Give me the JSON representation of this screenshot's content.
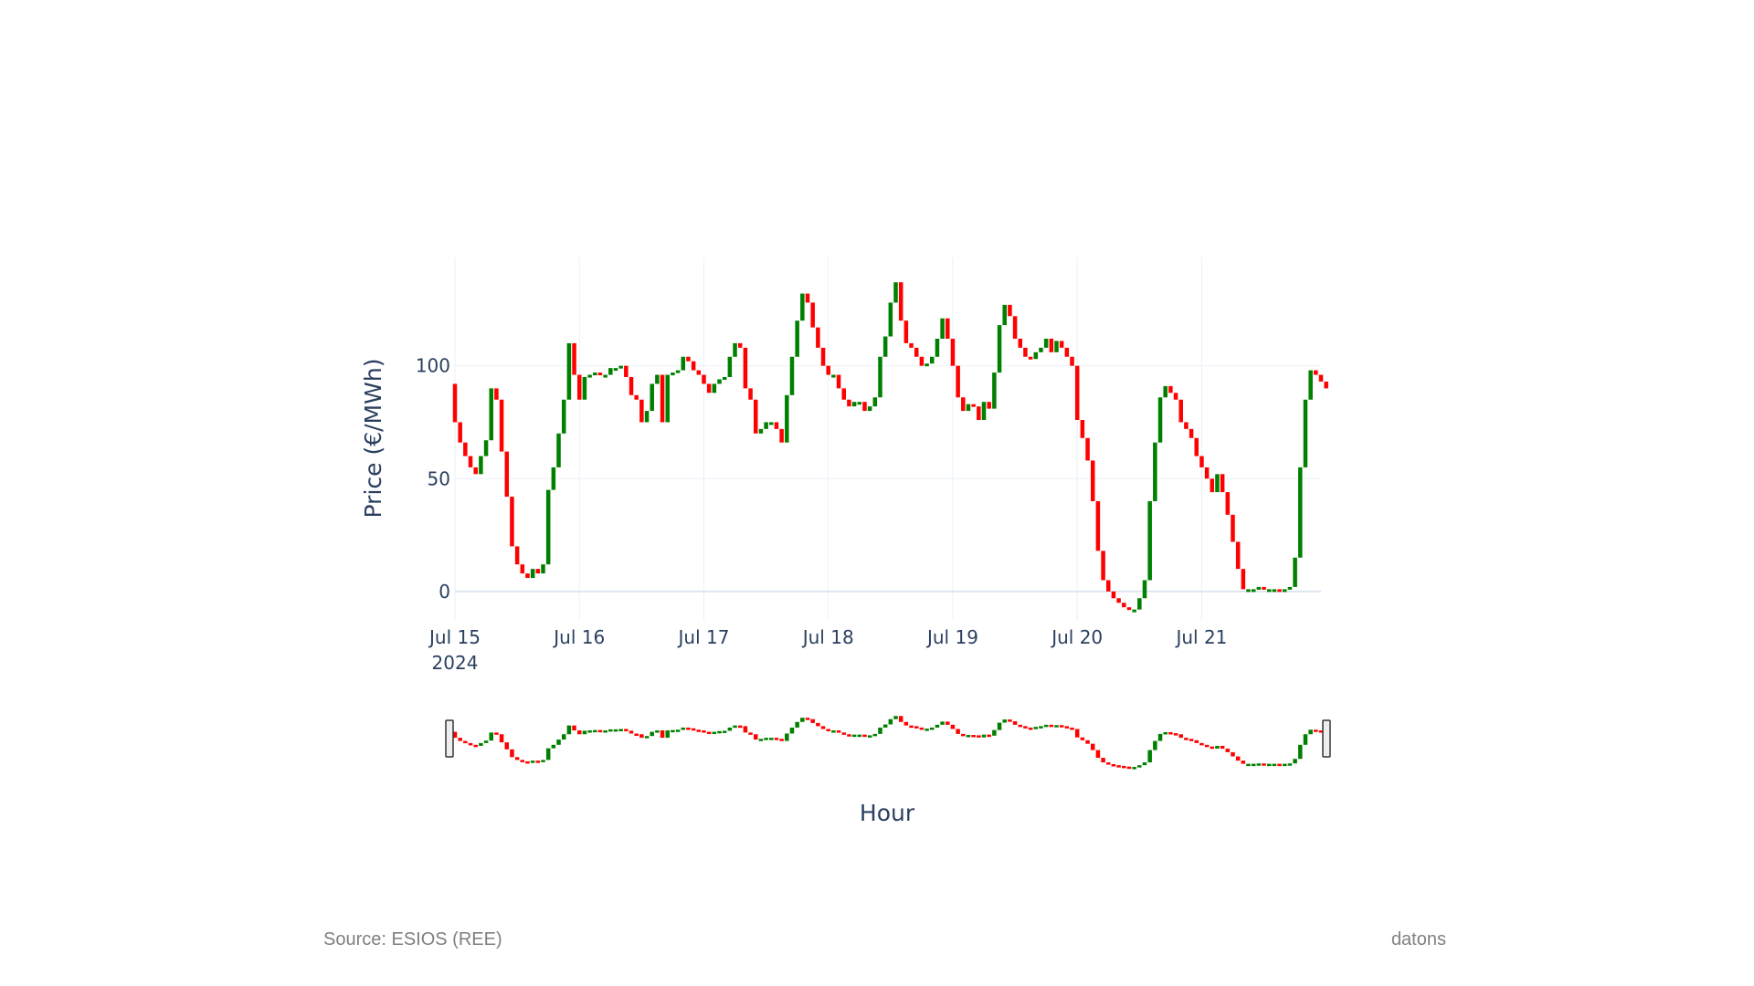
{
  "chart_data": {
    "type": "candlestick",
    "ylabel": "Price (€/MWh)",
    "xlabel": "Hour",
    "y_ticks": [
      0,
      50,
      100
    ],
    "ylim": [
      -13,
      148
    ],
    "x_ticks": [
      {
        "date": "2024-07-15",
        "label": "Jul 15",
        "sub": "2024"
      },
      {
        "date": "2024-07-16",
        "label": "Jul 16",
        "sub": ""
      },
      {
        "date": "2024-07-17",
        "label": "Jul 17",
        "sub": ""
      },
      {
        "date": "2024-07-18",
        "label": "Jul 18",
        "sub": ""
      },
      {
        "date": "2024-07-19",
        "label": "Jul 19",
        "sub": ""
      },
      {
        "date": "2024-07-20",
        "label": "Jul 20",
        "sub": ""
      },
      {
        "date": "2024-07-21",
        "label": "Jul 21",
        "sub": ""
      }
    ],
    "xlim": [
      "2024-07-15 00:00",
      "2024-07-21 23:00"
    ],
    "increasing_color": "#008000",
    "decreasing_color": "#ff0000",
    "grid": true,
    "rangeslider": true,
    "hourly_open": [
      92,
      75,
      66,
      60,
      55,
      52,
      60,
      67,
      90,
      85,
      62,
      42,
      20,
      12,
      8,
      6,
      10,
      8,
      12,
      45,
      55,
      70,
      85,
      110,
      96,
      85,
      95,
      96,
      97,
      96,
      96,
      99,
      99,
      100,
      95,
      87,
      85,
      75,
      80,
      92,
      96,
      75,
      96,
      97,
      98,
      104,
      102,
      98,
      96,
      92,
      88,
      92,
      94,
      95,
      104,
      110,
      108,
      90,
      85,
      70,
      72,
      75,
      75,
      72,
      66,
      87,
      104,
      120,
      132,
      128,
      117,
      108,
      100,
      96,
      96,
      90,
      85,
      82,
      84,
      84,
      80,
      82,
      86,
      104,
      113,
      128,
      137,
      120,
      110,
      108,
      104,
      100,
      101,
      104,
      112,
      121,
      112,
      100,
      86,
      80,
      83,
      82,
      76,
      84,
      81,
      97,
      118,
      127,
      122,
      112,
      108,
      104,
      103,
      106,
      108,
      112,
      106,
      111,
      108,
      104,
      100,
      76,
      68,
      58,
      40,
      18,
      5,
      0,
      -3,
      -5,
      -7,
      -8,
      -8,
      -3,
      5,
      40,
      66,
      86,
      91,
      88,
      85,
      75,
      72,
      68,
      60,
      55,
      50,
      44,
      52,
      44,
      34,
      22,
      10,
      1,
      1,
      1,
      2,
      1,
      1,
      1,
      0,
      1,
      2,
      15,
      55,
      85,
      98,
      96,
      93
    ]
  }
}
